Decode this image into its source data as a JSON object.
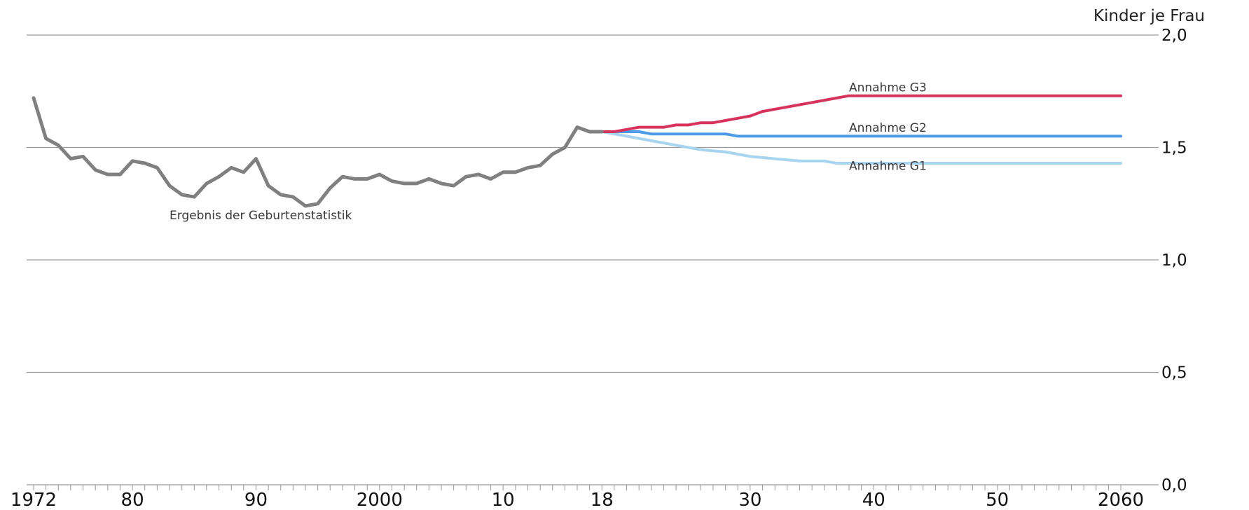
{
  "chart_data": {
    "type": "line",
    "ylabel": "Kinder je Frau",
    "ylim": [
      0,
      2.0
    ],
    "yticks": [
      "0,0",
      "0,5",
      "1,0",
      "1,5",
      "2,0"
    ],
    "ytick_values": [
      0,
      0.5,
      1.0,
      1.5,
      2.0
    ],
    "xlim": [
      1972,
      2060
    ],
    "xticks": [
      "1972",
      "80",
      "90",
      "2000",
      "10",
      "18",
      "30",
      "40",
      "50",
      "2060"
    ],
    "xtick_values": [
      1972,
      1980,
      1990,
      2000,
      2010,
      2018,
      2030,
      2040,
      2050,
      2060
    ],
    "grid": true,
    "series": [
      {
        "name": "Ergebnis der Geburtenstatistik",
        "color": "#808080",
        "points": [
          [
            1972,
            1.72
          ],
          [
            1973,
            1.54
          ],
          [
            1974,
            1.51
          ],
          [
            1975,
            1.45
          ],
          [
            1976,
            1.46
          ],
          [
            1977,
            1.4
          ],
          [
            1978,
            1.38
          ],
          [
            1979,
            1.38
          ],
          [
            1980,
            1.44
          ],
          [
            1981,
            1.43
          ],
          [
            1982,
            1.41
          ],
          [
            1983,
            1.33
          ],
          [
            1984,
            1.29
          ],
          [
            1985,
            1.28
          ],
          [
            1986,
            1.34
          ],
          [
            1987,
            1.37
          ],
          [
            1988,
            1.41
          ],
          [
            1989,
            1.39
          ],
          [
            1990,
            1.45
          ],
          [
            1991,
            1.33
          ],
          [
            1992,
            1.29
          ],
          [
            1993,
            1.28
          ],
          [
            1994,
            1.24
          ],
          [
            1995,
            1.25
          ],
          [
            1996,
            1.32
          ],
          [
            1997,
            1.37
          ],
          [
            1998,
            1.36
          ],
          [
            1999,
            1.36
          ],
          [
            2000,
            1.38
          ],
          [
            2001,
            1.35
          ],
          [
            2002,
            1.34
          ],
          [
            2003,
            1.34
          ],
          [
            2004,
            1.36
          ],
          [
            2005,
            1.34
          ],
          [
            2006,
            1.33
          ],
          [
            2007,
            1.37
          ],
          [
            2008,
            1.38
          ],
          [
            2009,
            1.36
          ],
          [
            2010,
            1.39
          ],
          [
            2011,
            1.39
          ],
          [
            2012,
            1.41
          ],
          [
            2013,
            1.42
          ],
          [
            2014,
            1.47
          ],
          [
            2015,
            1.5
          ],
          [
            2016,
            1.59
          ],
          [
            2017,
            1.57
          ],
          [
            2018,
            1.57
          ]
        ]
      },
      {
        "name": "Annahme G3",
        "color": "#d6335d",
        "points": [
          [
            2018,
            1.57
          ],
          [
            2019,
            1.57
          ],
          [
            2020,
            1.58
          ],
          [
            2021,
            1.59
          ],
          [
            2022,
            1.59
          ],
          [
            2023,
            1.59
          ],
          [
            2024,
            1.6
          ],
          [
            2025,
            1.6
          ],
          [
            2026,
            1.61
          ],
          [
            2027,
            1.61
          ],
          [
            2028,
            1.62
          ],
          [
            2029,
            1.63
          ],
          [
            2030,
            1.64
          ],
          [
            2031,
            1.66
          ],
          [
            2032,
            1.67
          ],
          [
            2033,
            1.68
          ],
          [
            2034,
            1.69
          ],
          [
            2035,
            1.7
          ],
          [
            2036,
            1.71
          ],
          [
            2037,
            1.72
          ],
          [
            2038,
            1.73
          ],
          [
            2060,
            1.73
          ]
        ]
      },
      {
        "name": "Annahme G2",
        "color": "#4d9be6",
        "points": [
          [
            2018,
            1.57
          ],
          [
            2020,
            1.57
          ],
          [
            2021,
            1.57
          ],
          [
            2022,
            1.56
          ],
          [
            2023,
            1.56
          ],
          [
            2026,
            1.56
          ],
          [
            2028,
            1.56
          ],
          [
            2029,
            1.55
          ],
          [
            2060,
            1.55
          ]
        ]
      },
      {
        "name": "Annahme G1",
        "color": "#a9d4f0",
        "points": [
          [
            2018,
            1.57
          ],
          [
            2020,
            1.55
          ],
          [
            2022,
            1.53
          ],
          [
            2024,
            1.51
          ],
          [
            2026,
            1.49
          ],
          [
            2028,
            1.48
          ],
          [
            2030,
            1.46
          ],
          [
            2032,
            1.45
          ],
          [
            2034,
            1.44
          ],
          [
            2036,
            1.44
          ],
          [
            2037,
            1.43
          ],
          [
            2060,
            1.43
          ]
        ]
      }
    ],
    "annotations": [
      {
        "series": "Annahme G3",
        "text": "Annahme G3",
        "at": [
          2038,
          1.75
        ]
      },
      {
        "series": "Annahme G2",
        "text": "Annahme G2",
        "at": [
          2038,
          1.57
        ]
      },
      {
        "series": "Annahme G1",
        "text": "Annahme G1",
        "at": [
          2038,
          1.4
        ]
      },
      {
        "series": "Ergebnis der Geburtenstatistik",
        "text": "Ergebnis der Geburtenstatistik",
        "at": [
          1983,
          1.18
        ]
      }
    ]
  }
}
